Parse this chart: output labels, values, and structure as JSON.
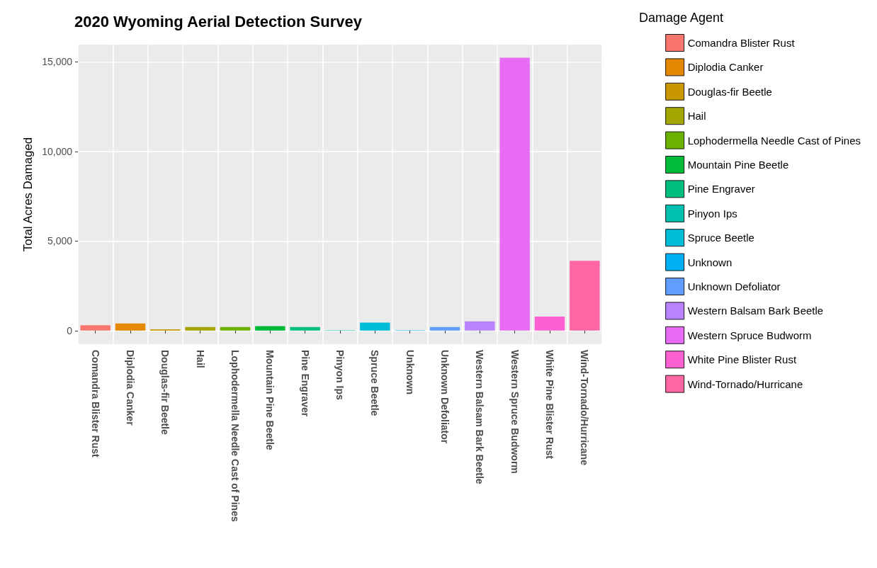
{
  "chart_data": {
    "type": "bar",
    "title": "2020 Wyoming Aerial Detection Survey",
    "ylabel": "Total Acres Damaged",
    "legend_title": "Damage Agent",
    "stacked": true,
    "categories": [
      "Comandra Blister Rust",
      "Diplodia Canker",
      "Douglas-fir Beetle",
      "Hail",
      "Lophodermella Needle Cast of Pines",
      "Mountain Pine Beetle",
      "Pine Engraver",
      "Pinyon Ips",
      "Spruce Beetle",
      "Unknown",
      "Unknown Defoliator",
      "Western Balsam Bark Beetle",
      "Western Spruce Budworm",
      "White Pine Blister Rust",
      "Wind-Tornado/Hurricane"
    ],
    "series": [
      {
        "name": "Comandra Blister Rust",
        "color": "#f8766d",
        "values": [
          300,
          null,
          null,
          null,
          null,
          null,
          null,
          null,
          null,
          null,
          null,
          null,
          null,
          null,
          null
        ]
      },
      {
        "name": "Diplodia Canker",
        "color": "#e58700",
        "values": [
          null,
          400,
          null,
          null,
          null,
          null,
          null,
          null,
          null,
          null,
          null,
          null,
          null,
          null,
          null
        ]
      },
      {
        "name": "Douglas-fir Beetle",
        "color": "#c99800",
        "values": [
          null,
          null,
          70,
          null,
          null,
          null,
          null,
          null,
          null,
          null,
          null,
          null,
          null,
          null,
          null
        ]
      },
      {
        "name": "Hail",
        "color": "#a3a500",
        "values": [
          null,
          null,
          null,
          200,
          null,
          null,
          null,
          null,
          null,
          null,
          null,
          null,
          null,
          null,
          null
        ]
      },
      {
        "name": "Lophodermella Needle Cast of Pines",
        "color": "#6bb100",
        "values": [
          null,
          null,
          null,
          null,
          200,
          null,
          null,
          null,
          null,
          null,
          null,
          null,
          null,
          null,
          null
        ]
      },
      {
        "name": "Mountain Pine Beetle",
        "color": "#00ba38",
        "values": [
          null,
          null,
          null,
          null,
          null,
          250,
          null,
          null,
          null,
          null,
          null,
          null,
          null,
          null,
          null
        ]
      },
      {
        "name": "Pine Engraver",
        "color": "#00bf7d",
        "values": [
          null,
          null,
          null,
          null,
          null,
          null,
          200,
          null,
          null,
          null,
          null,
          null,
          null,
          null,
          null
        ]
      },
      {
        "name": "Pinyon Ips",
        "color": "#00c0af",
        "values": [
          null,
          null,
          null,
          null,
          null,
          null,
          null,
          20,
          null,
          null,
          null,
          null,
          null,
          null,
          null
        ]
      },
      {
        "name": "Spruce Beetle",
        "color": "#00bcd8",
        "values": [
          null,
          null,
          null,
          null,
          null,
          null,
          null,
          null,
          450,
          null,
          null,
          null,
          null,
          null,
          null
        ]
      },
      {
        "name": "Unknown",
        "color": "#00b0f6",
        "values": [
          null,
          null,
          null,
          null,
          null,
          null,
          null,
          null,
          null,
          20,
          null,
          null,
          null,
          null,
          null
        ]
      },
      {
        "name": "Unknown Defoliator",
        "color": "#619cff",
        "values": [
          null,
          null,
          null,
          null,
          null,
          null,
          null,
          null,
          null,
          null,
          200,
          null,
          null,
          null,
          null
        ]
      },
      {
        "name": "Western Balsam Bark Beetle",
        "color": "#b983ff",
        "values": [
          null,
          null,
          null,
          null,
          null,
          null,
          null,
          null,
          null,
          null,
          null,
          510,
          null,
          null,
          null
        ]
      },
      {
        "name": "Western Spruce Budworm",
        "color": "#e76bf3",
        "values": [
          null,
          null,
          null,
          null,
          null,
          null,
          null,
          null,
          null,
          null,
          null,
          null,
          15230,
          null,
          null
        ]
      },
      {
        "name": "White Pine Blister Rust",
        "color": "#fd61d1",
        "values": [
          null,
          null,
          null,
          null,
          null,
          null,
          null,
          null,
          null,
          null,
          null,
          null,
          null,
          780,
          null
        ]
      },
      {
        "name": "Wind-Tornado/Hurricane",
        "color": "#ff67a4",
        "values": [
          null,
          null,
          null,
          null,
          null,
          null,
          null,
          null,
          null,
          null,
          null,
          null,
          null,
          null,
          3890
        ]
      }
    ],
    "ylim": [
      -760,
      15960
    ],
    "yticks": [
      {
        "value": 0,
        "label": "0"
      },
      {
        "value": 5000,
        "label": "5,000"
      },
      {
        "value": 10000,
        "label": "10,000"
      },
      {
        "value": 15000,
        "label": "15,000"
      }
    ],
    "grid": true,
    "legend": "right"
  }
}
